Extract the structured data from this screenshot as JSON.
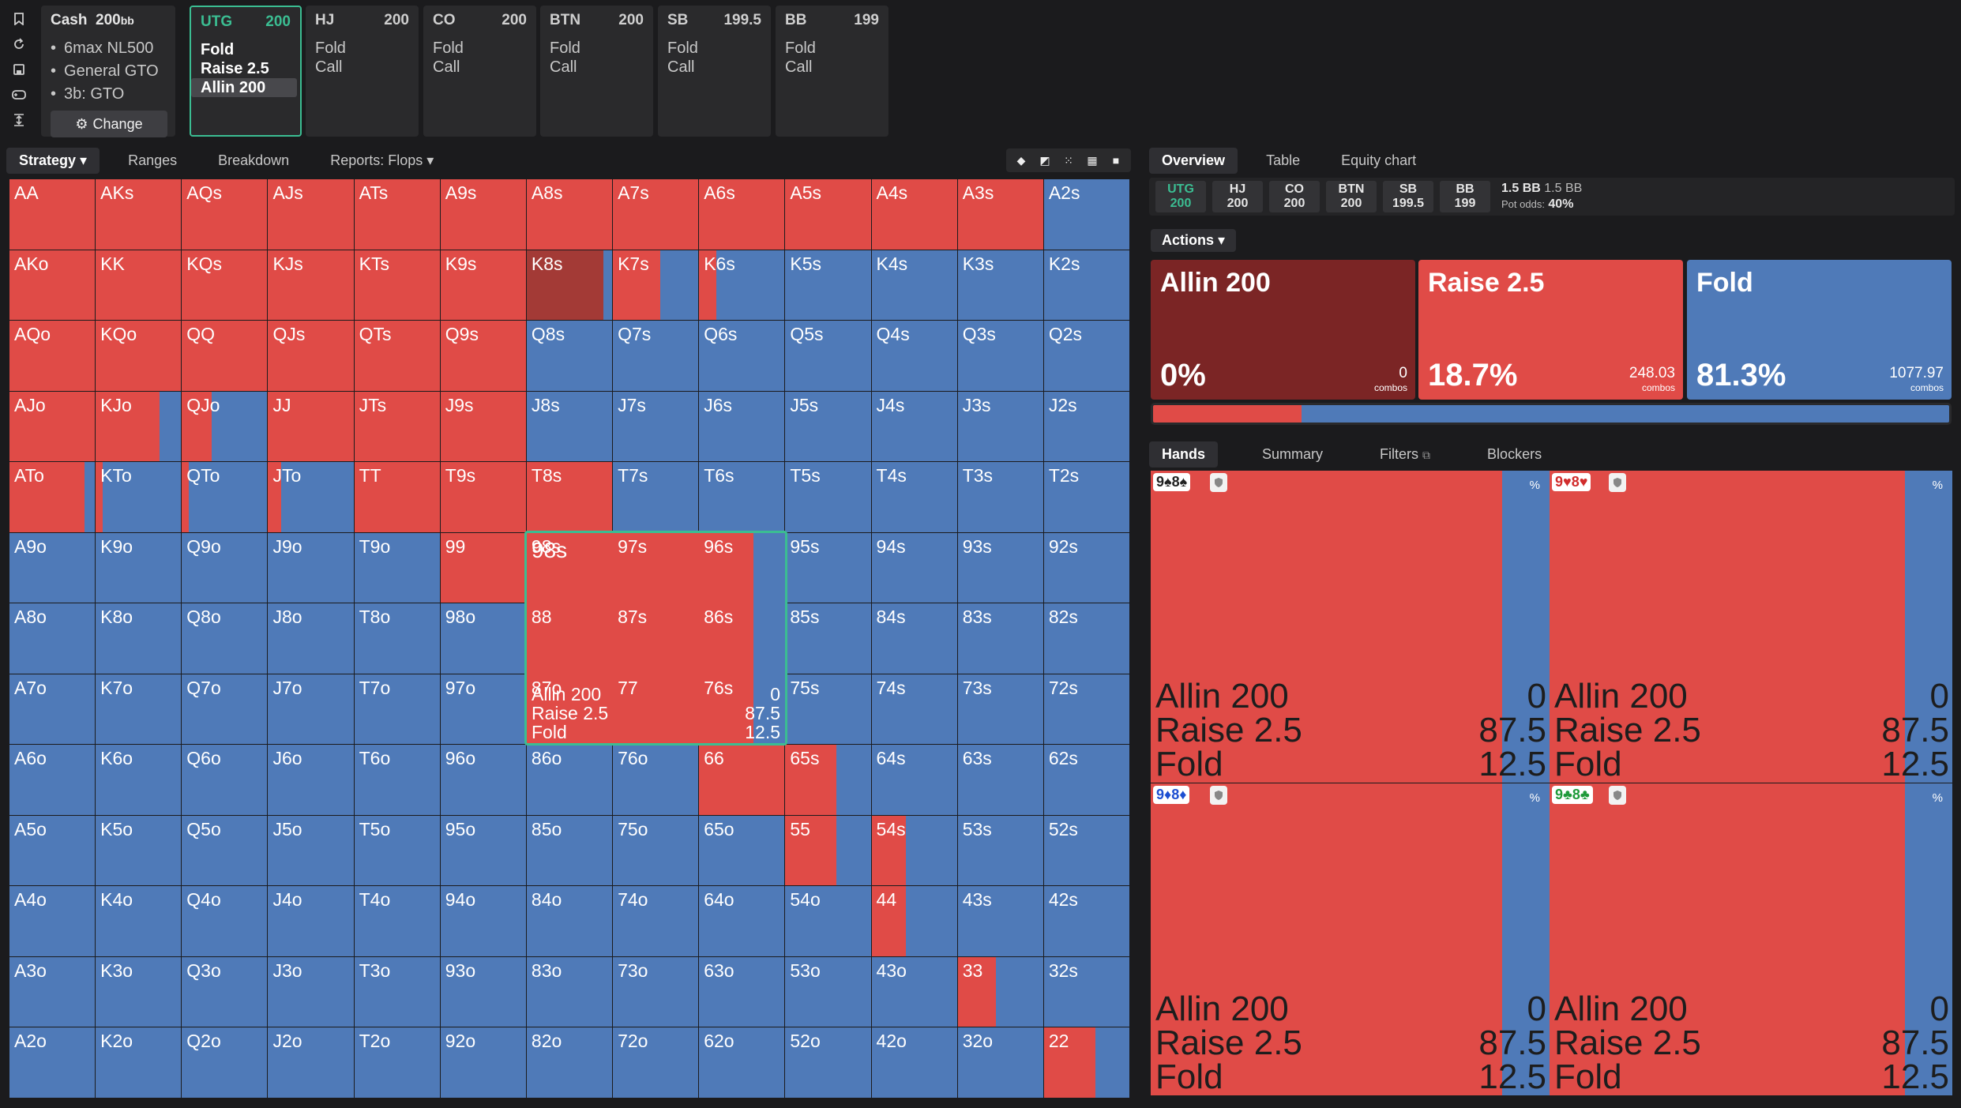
{
  "sidebar_icons": [
    "bookmark-icon",
    "refresh-icon",
    "save-icon",
    "gamepad-icon",
    "expand-vertical-icon"
  ],
  "game": {
    "title": "Cash",
    "stack": "200",
    "unit": "bb",
    "details": [
      "6max NL500",
      "General GTO",
      "3b: GTO"
    ],
    "change_label": "Change"
  },
  "positions": [
    {
      "pos": "UTG",
      "stack": "200",
      "actions": [
        "Fold",
        "Raise 2.5",
        "Allin 200"
      ],
      "active": true,
      "selected": 2
    },
    {
      "pos": "HJ",
      "stack": "200",
      "actions": [
        "Fold",
        "Call"
      ]
    },
    {
      "pos": "CO",
      "stack": "200",
      "actions": [
        "Fold",
        "Call"
      ]
    },
    {
      "pos": "BTN",
      "stack": "200",
      "actions": [
        "Fold",
        "Call"
      ]
    },
    {
      "pos": "SB",
      "stack": "199.5",
      "actions": [
        "Fold",
        "Call"
      ]
    },
    {
      "pos": "BB",
      "stack": "199",
      "actions": [
        "Fold",
        "Call"
      ]
    }
  ],
  "left_tabs": [
    "Strategy",
    "Ranges",
    "Breakdown",
    "Reports: Flops"
  ],
  "colors": {
    "allin": "#7b2525",
    "raise": "#e04b47",
    "fold": "#4f7ab8",
    "accent": "#3bbd92"
  },
  "grid": {
    "labels": [
      [
        "AA",
        "AKs",
        "AQs",
        "AJs",
        "ATs",
        "A9s",
        "A8s",
        "A7s",
        "A6s",
        "A5s",
        "A4s",
        "A3s",
        "A2s"
      ],
      [
        "AKo",
        "KK",
        "KQs",
        "KJs",
        "KTs",
        "K9s",
        "K8s",
        "K7s",
        "K6s",
        "K5s",
        "K4s",
        "K3s",
        "K2s"
      ],
      [
        "AQo",
        "KQo",
        "QQ",
        "QJs",
        "QTs",
        "Q9s",
        "Q8s",
        "Q7s",
        "Q6s",
        "Q5s",
        "Q4s",
        "Q3s",
        "Q2s"
      ],
      [
        "AJo",
        "KJo",
        "QJo",
        "JJ",
        "JTs",
        "J9s",
        "J8s",
        "J7s",
        "J6s",
        "J5s",
        "J4s",
        "J3s",
        "J2s"
      ],
      [
        "ATo",
        "KTo",
        "QTo",
        "JTo",
        "TT",
        "T9s",
        "T8s",
        "T7s",
        "T6s",
        "T5s",
        "T4s",
        "T3s",
        "T2s"
      ],
      [
        "A9o",
        "K9o",
        "Q9o",
        "J9o",
        "T9o",
        "99",
        "98s",
        "97s",
        "96s",
        "95s",
        "94s",
        "93s",
        "92s"
      ],
      [
        "A8o",
        "K8o",
        "Q8o",
        "J8o",
        "T8o",
        "98o",
        "88",
        "87s",
        "86s",
        "85s",
        "84s",
        "83s",
        "82s"
      ],
      [
        "A7o",
        "K7o",
        "Q7o",
        "J7o",
        "T7o",
        "97o",
        "87o",
        "77",
        "76s",
        "75s",
        "74s",
        "73s",
        "72s"
      ],
      [
        "A6o",
        "K6o",
        "Q6o",
        "J6o",
        "T6o",
        "96o",
        "86o",
        "76o",
        "66",
        "65s",
        "64s",
        "63s",
        "62s"
      ],
      [
        "A5o",
        "K5o",
        "Q5o",
        "J5o",
        "T5o",
        "95o",
        "85o",
        "75o",
        "65o",
        "55",
        "54s",
        "53s",
        "52s"
      ],
      [
        "A4o",
        "K4o",
        "Q4o",
        "J4o",
        "T4o",
        "94o",
        "84o",
        "74o",
        "64o",
        "54o",
        "44",
        "43s",
        "42s"
      ],
      [
        "A3o",
        "K3o",
        "Q3o",
        "J3o",
        "T3o",
        "93o",
        "83o",
        "73o",
        "63o",
        "53o",
        "43o",
        "33",
        "32s"
      ],
      [
        "A2o",
        "K2o",
        "Q2o",
        "J2o",
        "T2o",
        "92o",
        "82o",
        "72o",
        "62o",
        "52o",
        "42o",
        "32o",
        "22"
      ]
    ],
    "raise_freq": [
      [
        1,
        1,
        1,
        1,
        1,
        1,
        1,
        1,
        1,
        1,
        1,
        1,
        0
      ],
      [
        1,
        1,
        1,
        1,
        1,
        1,
        0.9,
        0.55,
        0.2,
        0,
        0,
        0,
        0
      ],
      [
        1,
        1,
        1,
        1,
        1,
        1,
        0,
        0,
        0,
        0,
        0,
        0,
        0
      ],
      [
        1,
        0.75,
        0.35,
        1,
        1,
        1,
        0,
        0,
        0,
        0,
        0,
        0,
        0
      ],
      [
        0.88,
        0.08,
        0.08,
        0.15,
        1,
        1,
        1,
        0,
        0,
        0,
        0,
        0,
        0
      ],
      [
        0,
        0,
        0,
        0,
        0,
        1,
        0.875,
        0,
        0,
        0,
        0,
        0,
        0
      ],
      [
        0,
        0,
        0,
        0,
        0,
        0,
        0,
        0,
        0,
        0,
        0,
        0,
        0
      ],
      [
        0,
        0,
        0,
        0,
        0,
        0,
        0,
        0,
        0,
        0,
        0,
        0,
        0
      ],
      [
        0,
        0,
        0,
        0,
        0,
        0,
        0,
        0,
        1,
        0.6,
        0,
        0,
        0
      ],
      [
        0,
        0,
        0,
        0,
        0,
        0,
        0,
        0,
        0,
        0.6,
        0.4,
        0,
        0
      ],
      [
        0,
        0,
        0,
        0,
        0,
        0,
        0,
        0,
        0,
        0,
        0.4,
        0,
        0
      ],
      [
        0,
        0,
        0,
        0,
        0,
        0,
        0,
        0,
        0,
        0,
        0,
        0.45,
        0
      ],
      [
        0,
        0,
        0,
        0,
        0,
        0,
        0,
        0,
        0,
        0,
        0,
        0,
        0.6
      ]
    ],
    "allin_freq": [
      [
        0,
        0,
        0,
        0,
        0,
        0,
        0,
        0,
        0,
        0,
        0,
        0,
        0
      ],
      [
        0,
        0,
        0,
        0,
        0,
        0,
        0.9,
        0,
        0,
        0,
        0,
        0,
        0
      ]
    ]
  },
  "zoom": {
    "hand": "98s",
    "rows": [
      {
        "label": "Allin 200",
        "value": "0"
      },
      {
        "label": "Raise 2.5",
        "value": "87.5"
      },
      {
        "label": "Fold",
        "value": "12.5"
      }
    ]
  },
  "right_tabs": [
    "Overview",
    "Table",
    "Equity chart"
  ],
  "stacks": [
    {
      "pos": "UTG",
      "stack": "200",
      "on": true
    },
    {
      "pos": "HJ",
      "stack": "200"
    },
    {
      "pos": "CO",
      "stack": "200"
    },
    {
      "pos": "BTN",
      "stack": "200"
    },
    {
      "pos": "SB",
      "stack": "199.5"
    },
    {
      "pos": "BB",
      "stack": "199"
    }
  ],
  "pot": {
    "bb": "1.5 BB",
    "bb2": "1.5 BB",
    "odds_label": "Pot odds:",
    "odds": "40%"
  },
  "actions_label": "Actions",
  "actions": [
    {
      "name": "Allin 200",
      "pct": "0%",
      "combos": "0",
      "combos_label": "combos",
      "color": "#7b2525"
    },
    {
      "name": "Raise 2.5",
      "pct": "18.7%",
      "combos": "248.03",
      "combos_label": "combos",
      "color": "#e04b47"
    },
    {
      "name": "Fold",
      "pct": "81.3%",
      "combos": "1077.97",
      "combos_label": "combos",
      "color": "#4f7ab8"
    }
  ],
  "freq_bar": {
    "allin": 0,
    "raise": 0.187,
    "fold": 0.813
  },
  "hand_tabs": [
    "Hands",
    "Summary",
    "Filters",
    "Blockers"
  ],
  "combos": [
    {
      "card1": "9♠",
      "card2": "8♠",
      "suit_color": "#222222",
      "pct": "%",
      "rows": [
        {
          "label": "Allin 200",
          "value": "0"
        },
        {
          "label": "Raise 2.5",
          "value": "87.5"
        },
        {
          "label": "Fold",
          "value": "12.5"
        }
      ]
    },
    {
      "card1": "9♥",
      "card2": "8♥",
      "suit_color": "#d12c2c",
      "pct": "%",
      "rows": [
        {
          "label": "Allin 200",
          "value": "0"
        },
        {
          "label": "Raise 2.5",
          "value": "87.5"
        },
        {
          "label": "Fold",
          "value": "12.5"
        }
      ]
    },
    {
      "card1": "9♦",
      "card2": "8♦",
      "suit_color": "#1d4fd1",
      "pct": "%",
      "rows": [
        {
          "label": "Allin 200",
          "value": "0"
        },
        {
          "label": "Raise 2.5",
          "value": "87.5"
        },
        {
          "label": "Fold",
          "value": "12.5"
        }
      ]
    },
    {
      "card1": "9♣",
      "card2": "8♣",
      "suit_color": "#1f9a3a",
      "pct": "%",
      "rows": [
        {
          "label": "Allin 200",
          "value": "0"
        },
        {
          "label": "Raise 2.5",
          "value": "87.5"
        },
        {
          "label": "Fold",
          "value": "12.5"
        }
      ]
    }
  ]
}
